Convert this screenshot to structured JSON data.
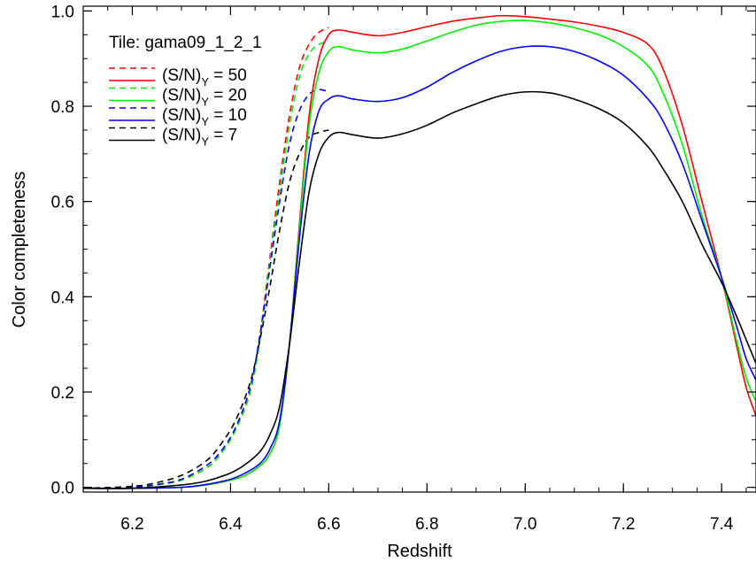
{
  "chart_data": {
    "type": "line",
    "title": "",
    "xlabel": "Redshift",
    "ylabel": "Color completeness",
    "xlim": [
      6.1,
      7.47
    ],
    "ylim": [
      -0.01,
      1.01
    ],
    "xticks": [
      6.2,
      6.4,
      6.6,
      6.8,
      7.0,
      7.2,
      7.4
    ],
    "xtick_labels": [
      "6.2",
      "6.4",
      "6.6",
      "6.8",
      "7.0",
      "7.2",
      "7.4"
    ],
    "yticks": [
      0.0,
      0.2,
      0.4,
      0.6,
      0.8,
      1.0
    ],
    "ytick_labels": [
      "0.0",
      "0.2",
      "0.4",
      "0.6",
      "0.8",
      "1.0"
    ],
    "grid": false,
    "legend_position": "top-left",
    "annotation": "Tile: gama09_1_2_1",
    "legend": [
      {
        "label": "(S/N)",
        "sub": "Y",
        "value": " = 50",
        "color": "#ff0000",
        "style": "dashed"
      },
      {
        "label": "(S/N)",
        "sub": "Y",
        "value": " = 50",
        "color": "#ff0000",
        "style": "solid"
      },
      {
        "label": "(S/N)",
        "sub": "Y",
        "value": " = 20",
        "color": "#00ee00",
        "style": "dashed"
      },
      {
        "label": "(S/N)",
        "sub": "Y",
        "value": " = 20",
        "color": "#00ee00",
        "style": "solid"
      },
      {
        "label": "(S/N)",
        "sub": "Y",
        "value": " = 10",
        "color": "#0000ff",
        "style": "dashed"
      },
      {
        "label": "(S/N)",
        "sub": "Y",
        "value": " = 10",
        "color": "#0000ff",
        "style": "solid"
      },
      {
        "label": "(S/N)",
        "sub": "Y",
        "value": " = 7",
        "color": "#000000",
        "style": "dashed"
      },
      {
        "label": "(S/N)",
        "sub": "Y",
        "value": " = 7",
        "color": "#000000",
        "style": "solid"
      }
    ],
    "series": [
      {
        "color": "#ff0000",
        "style": "dashed",
        "x": [
          6.1,
          6.2,
          6.25,
          6.3,
          6.35,
          6.38,
          6.41,
          6.44,
          6.46,
          6.48,
          6.5,
          6.52,
          6.54,
          6.56,
          6.58,
          6.6
        ],
        "y": [
          -0.002,
          0.0,
          0.005,
          0.015,
          0.04,
          0.07,
          0.12,
          0.2,
          0.32,
          0.48,
          0.64,
          0.78,
          0.88,
          0.93,
          0.955,
          0.965
        ]
      },
      {
        "color": "#00ee00",
        "style": "dashed",
        "x": [
          6.1,
          6.2,
          6.25,
          6.3,
          6.35,
          6.38,
          6.41,
          6.44,
          6.46,
          6.48,
          6.5,
          6.52,
          6.54,
          6.56,
          6.58,
          6.6
        ],
        "y": [
          -0.002,
          0.0,
          0.005,
          0.015,
          0.04,
          0.07,
          0.12,
          0.2,
          0.31,
          0.47,
          0.62,
          0.76,
          0.86,
          0.91,
          0.93,
          0.935
        ]
      },
      {
        "color": "#0000ff",
        "style": "dashed",
        "x": [
          6.1,
          6.2,
          6.25,
          6.3,
          6.35,
          6.38,
          6.41,
          6.44,
          6.46,
          6.48,
          6.5,
          6.52,
          6.54,
          6.56,
          6.58,
          6.6
        ],
        "y": [
          -0.002,
          0.0,
          0.006,
          0.017,
          0.045,
          0.075,
          0.125,
          0.21,
          0.32,
          0.46,
          0.6,
          0.72,
          0.79,
          0.825,
          0.835,
          0.83
        ]
      },
      {
        "color": "#000000",
        "style": "dashed",
        "x": [
          6.1,
          6.2,
          6.25,
          6.3,
          6.35,
          6.38,
          6.41,
          6.44,
          6.46,
          6.48,
          6.5,
          6.52,
          6.54,
          6.56,
          6.58,
          6.6
        ],
        "y": [
          -0.002,
          0.002,
          0.01,
          0.025,
          0.055,
          0.09,
          0.14,
          0.22,
          0.31,
          0.42,
          0.54,
          0.64,
          0.7,
          0.735,
          0.745,
          0.75
        ]
      },
      {
        "color": "#ff0000",
        "style": "solid",
        "x": [
          6.1,
          6.2,
          6.3,
          6.35,
          6.4,
          6.43,
          6.46,
          6.48,
          6.5,
          6.52,
          6.54,
          6.56,
          6.58,
          6.6,
          6.62,
          6.65,
          6.7,
          6.75,
          6.8,
          6.85,
          6.9,
          6.95,
          7.0,
          7.05,
          7.1,
          7.15,
          7.2,
          7.25,
          7.28,
          7.32,
          7.36,
          7.4,
          7.43,
          7.45,
          7.47
        ],
        "y": [
          -0.002,
          -0.002,
          0.0,
          0.005,
          0.015,
          0.025,
          0.045,
          0.07,
          0.13,
          0.3,
          0.55,
          0.78,
          0.9,
          0.95,
          0.96,
          0.955,
          0.948,
          0.955,
          0.967,
          0.978,
          0.985,
          0.99,
          0.988,
          0.983,
          0.977,
          0.968,
          0.955,
          0.93,
          0.88,
          0.76,
          0.6,
          0.44,
          0.3,
          0.21,
          0.15
        ]
      },
      {
        "color": "#00ee00",
        "style": "solid",
        "x": [
          6.1,
          6.2,
          6.3,
          6.35,
          6.4,
          6.43,
          6.46,
          6.48,
          6.5,
          6.52,
          6.54,
          6.56,
          6.58,
          6.6,
          6.62,
          6.65,
          6.7,
          6.75,
          6.8,
          6.85,
          6.9,
          6.95,
          7.0,
          7.05,
          7.1,
          7.15,
          7.2,
          7.25,
          7.28,
          7.32,
          7.36,
          7.4,
          7.43,
          7.45,
          7.47
        ],
        "y": [
          -0.002,
          -0.002,
          0.0,
          0.005,
          0.015,
          0.025,
          0.045,
          0.07,
          0.13,
          0.3,
          0.54,
          0.76,
          0.87,
          0.915,
          0.925,
          0.918,
          0.912,
          0.92,
          0.937,
          0.955,
          0.97,
          0.978,
          0.98,
          0.975,
          0.965,
          0.95,
          0.925,
          0.885,
          0.83,
          0.72,
          0.57,
          0.44,
          0.31,
          0.23,
          0.18
        ]
      },
      {
        "color": "#0000ff",
        "style": "solid",
        "x": [
          6.1,
          6.2,
          6.3,
          6.35,
          6.4,
          6.43,
          6.46,
          6.48,
          6.5,
          6.52,
          6.54,
          6.56,
          6.58,
          6.6,
          6.62,
          6.65,
          6.7,
          6.75,
          6.8,
          6.85,
          6.9,
          6.95,
          7.0,
          7.05,
          7.1,
          7.15,
          7.2,
          7.25,
          7.28,
          7.32,
          7.36,
          7.4,
          7.43,
          7.45,
          7.47
        ],
        "y": [
          -0.002,
          -0.002,
          0.0,
          0.006,
          0.017,
          0.03,
          0.05,
          0.08,
          0.14,
          0.3,
          0.52,
          0.7,
          0.79,
          0.815,
          0.822,
          0.815,
          0.81,
          0.818,
          0.84,
          0.87,
          0.895,
          0.915,
          0.925,
          0.925,
          0.915,
          0.895,
          0.865,
          0.815,
          0.77,
          0.68,
          0.56,
          0.44,
          0.34,
          0.27,
          0.225
        ]
      },
      {
        "color": "#000000",
        "style": "solid",
        "x": [
          6.1,
          6.2,
          6.3,
          6.35,
          6.4,
          6.43,
          6.46,
          6.48,
          6.5,
          6.52,
          6.54,
          6.56,
          6.58,
          6.6,
          6.62,
          6.65,
          6.7,
          6.75,
          6.8,
          6.85,
          6.9,
          6.95,
          7.0,
          7.05,
          7.1,
          7.15,
          7.2,
          7.25,
          7.28,
          7.32,
          7.36,
          7.4,
          7.43,
          7.45,
          7.47
        ],
        "y": [
          -0.002,
          -0.002,
          0.005,
          0.013,
          0.03,
          0.048,
          0.075,
          0.11,
          0.17,
          0.3,
          0.47,
          0.62,
          0.7,
          0.735,
          0.745,
          0.74,
          0.733,
          0.742,
          0.76,
          0.785,
          0.805,
          0.822,
          0.83,
          0.828,
          0.815,
          0.795,
          0.765,
          0.715,
          0.67,
          0.6,
          0.51,
          0.43,
          0.36,
          0.31,
          0.26
        ]
      }
    ]
  }
}
